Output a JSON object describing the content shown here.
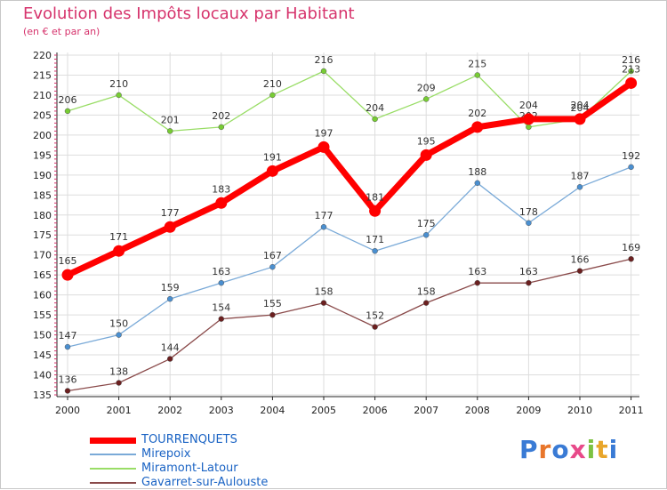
{
  "header": {
    "title": "Evolution des Impôts locaux par Habitant",
    "subtitle": "(en € et par an)"
  },
  "logo_text": "Proxiti",
  "colors": {
    "title": "#d6336c",
    "grid": "#dddddd",
    "axis": "#222222"
  },
  "chart_data": {
    "type": "line",
    "title": "Evolution des Impôts locaux par Habitant",
    "ylabel": "(en € et par an)",
    "xlabel": "",
    "x": [
      "2000",
      "2001",
      "2002",
      "2003",
      "2004",
      "2005",
      "2006",
      "2007",
      "2008",
      "2009",
      "2010",
      "2011"
    ],
    "ylim": [
      135,
      220
    ],
    "yticks": [
      135,
      140,
      145,
      150,
      155,
      160,
      165,
      170,
      175,
      180,
      185,
      190,
      195,
      200,
      205,
      210,
      215,
      220
    ],
    "grid": true,
    "legend_position": "bottom-left",
    "series": [
      {
        "name": "TOURRENQUETS",
        "color": "#ff0000",
        "marker": "#ff0000",
        "width": 7,
        "radius": 6,
        "values": [
          165,
          171,
          177,
          183,
          191,
          197,
          181,
          195,
          202,
          204,
          204,
          213
        ]
      },
      {
        "name": "Mirepoix",
        "color": "#7aaad8",
        "marker": "#4a8fd0",
        "width": 1.3,
        "radius": 3,
        "values": [
          147,
          150,
          159,
          163,
          167,
          177,
          171,
          175,
          188,
          178,
          187,
          192
        ]
      },
      {
        "name": "Miramont-Latour",
        "color": "#99dd66",
        "marker": "#77cc33",
        "width": 1.3,
        "radius": 3,
        "values": [
          206,
          210,
          201,
          202,
          210,
          216,
          204,
          209,
          215,
          202,
          204,
          216
        ]
      },
      {
        "name": "Gavarret-sur-Aulouste",
        "color": "#8a4a4a",
        "marker": "#6b1f1f",
        "width": 1.3,
        "radius": 3,
        "values": [
          136,
          138,
          144,
          154,
          155,
          158,
          152,
          158,
          163,
          163,
          166,
          169
        ]
      }
    ]
  }
}
